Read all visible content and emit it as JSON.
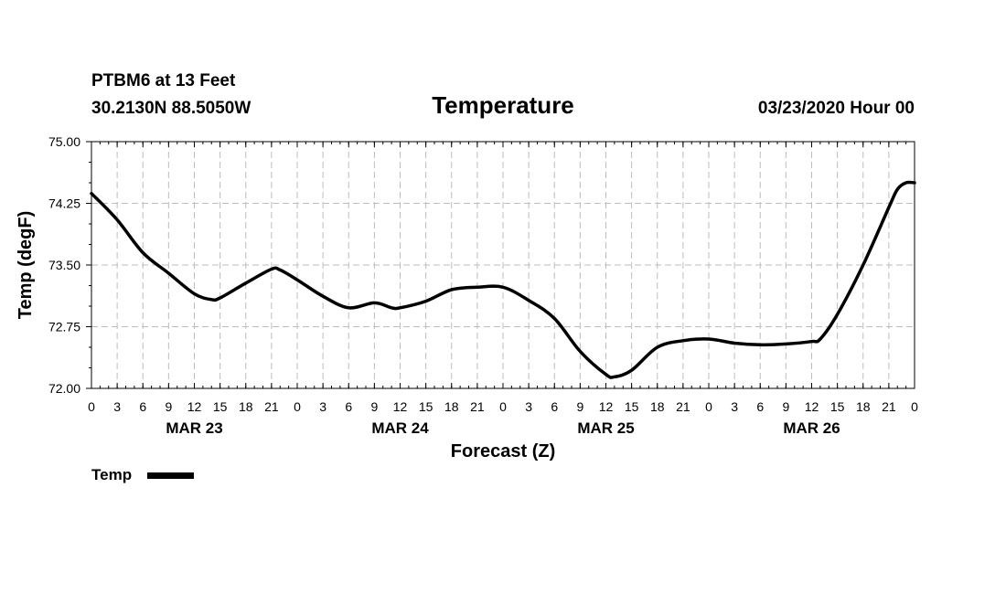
{
  "header": {
    "station": "PTBM6 at 13 Feet",
    "coords": "30.2130N 88.5050W",
    "run": "03/23/2020 Hour 00"
  },
  "chart_data": {
    "type": "line",
    "title": "Temperature",
    "xlabel": "Forecast (Z)",
    "ylabel": "Temp (degF)",
    "ylim": [
      72.0,
      75.0
    ],
    "xlim_hours": [
      0,
      96
    ],
    "grid": true,
    "yticks": [
      "72.00",
      "72.75",
      "73.50",
      "74.25",
      "75.00"
    ],
    "xtick_labels": [
      "0",
      "3",
      "6",
      "9",
      "12",
      "15",
      "18",
      "21",
      "0",
      "3",
      "6",
      "9",
      "12",
      "15",
      "18",
      "21",
      "0",
      "3",
      "6",
      "9",
      "12",
      "15",
      "18",
      "21",
      "0",
      "3",
      "6",
      "9",
      "12",
      "15",
      "18",
      "21",
      "0"
    ],
    "day_labels": [
      {
        "label": "MAR 23",
        "hour": 12
      },
      {
        "label": "MAR 24",
        "hour": 36
      },
      {
        "label": "MAR 25",
        "hour": 60
      },
      {
        "label": "MAR 26",
        "hour": 84
      }
    ],
    "legend": {
      "position": "bottom-left",
      "label": "Temp"
    },
    "series": [
      {
        "name": "Temp",
        "color": "#000000",
        "points": [
          [
            0,
            74.37
          ],
          [
            3,
            74.05
          ],
          [
            6,
            73.65
          ],
          [
            9,
            73.4
          ],
          [
            12,
            73.15
          ],
          [
            14,
            73.08
          ],
          [
            15,
            73.1
          ],
          [
            18,
            73.28
          ],
          [
            21,
            73.45
          ],
          [
            22,
            73.44
          ],
          [
            24,
            73.32
          ],
          [
            27,
            73.12
          ],
          [
            30,
            72.98
          ],
          [
            33,
            73.04
          ],
          [
            35,
            72.98
          ],
          [
            36,
            72.98
          ],
          [
            39,
            73.06
          ],
          [
            42,
            73.2
          ],
          [
            45,
            73.23
          ],
          [
            48,
            73.23
          ],
          [
            51,
            73.07
          ],
          [
            54,
            72.85
          ],
          [
            57,
            72.45
          ],
          [
            60,
            72.17
          ],
          [
            61,
            72.14
          ],
          [
            63,
            72.22
          ],
          [
            66,
            72.5
          ],
          [
            69,
            72.58
          ],
          [
            72,
            72.6
          ],
          [
            75,
            72.55
          ],
          [
            78,
            72.53
          ],
          [
            81,
            72.54
          ],
          [
            84,
            72.57
          ],
          [
            85,
            72.6
          ],
          [
            87,
            72.9
          ],
          [
            90,
            73.5
          ],
          [
            93,
            74.2
          ],
          [
            94,
            74.42
          ],
          [
            95,
            74.5
          ],
          [
            96,
            74.5
          ]
        ]
      }
    ]
  }
}
